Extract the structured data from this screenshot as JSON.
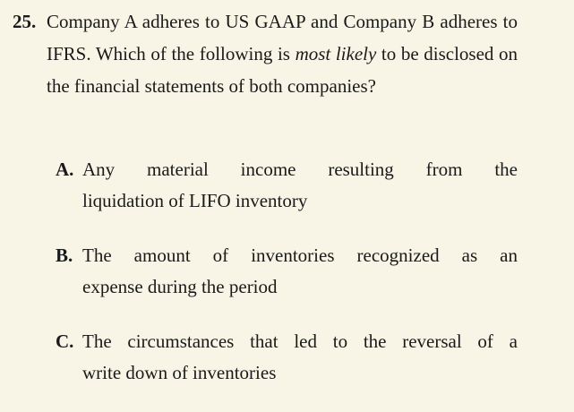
{
  "question": {
    "number": "25.",
    "text_before": "Company A adheres to US GAAP and Company B adheres to IFRS. Which of the following is ",
    "emphasis": "most likely",
    "text_after": " to be disclosed on the financial statements of both companies?"
  },
  "options": [
    {
      "letter": "A.",
      "line1": "Any material income resulting from the",
      "line2": "liquidation of LIFO inventory"
    },
    {
      "letter": "B.",
      "line1": "The amount of inventories recognized as an",
      "line2": "expense during the period"
    },
    {
      "letter": "C.",
      "line1": "The circumstances that led to the reversal of a",
      "line2": "write down of inventories"
    }
  ]
}
